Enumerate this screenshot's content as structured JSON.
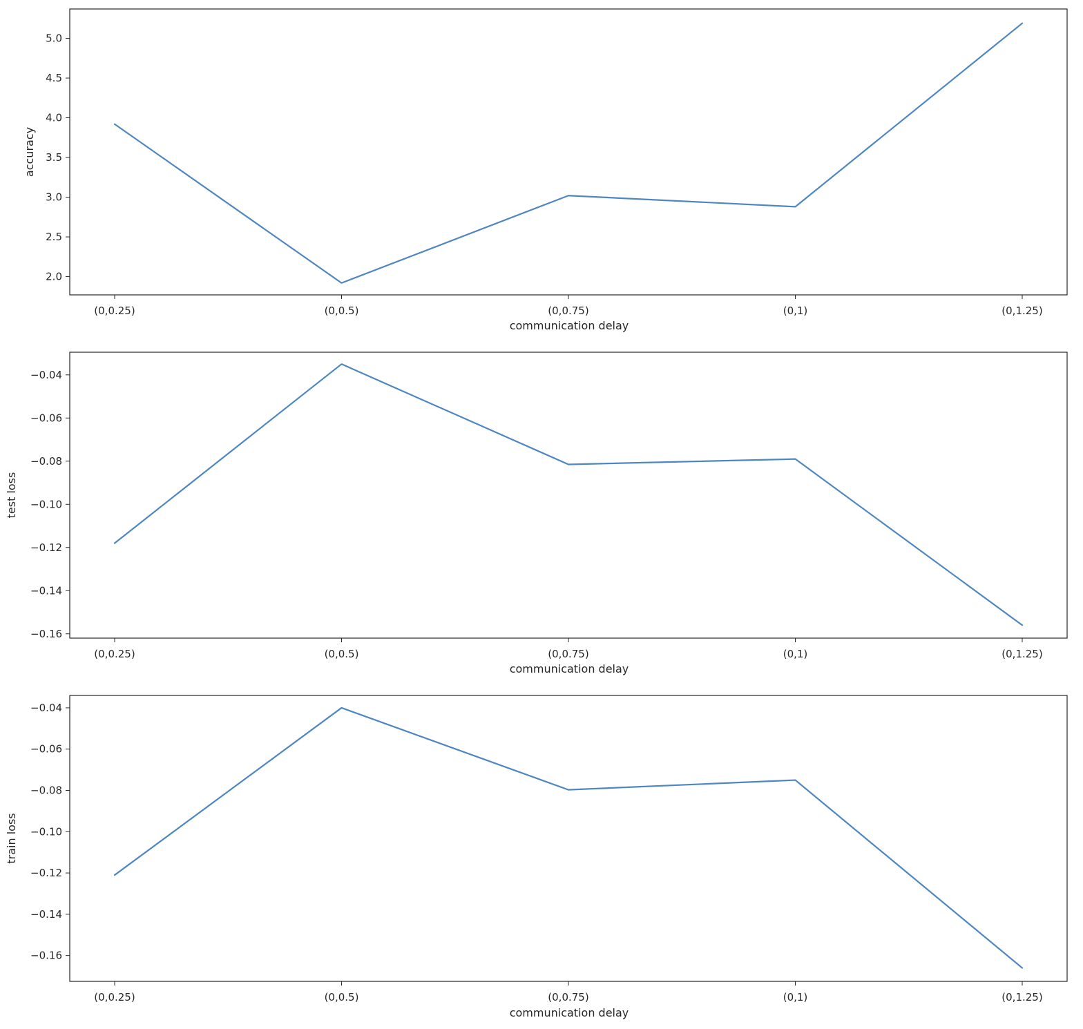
{
  "chart_data": [
    {
      "type": "line",
      "categories": [
        "(0,0.25)",
        "(0,0.5)",
        "(0,0.75)",
        "(0,1)",
        "(0,1.25)"
      ],
      "series": [
        {
          "values": [
            3.92,
            1.92,
            3.02,
            2.88,
            5.19
          ]
        }
      ],
      "xlabel": "communication delay",
      "ylabel": "accuracy",
      "ylim": [
        1.77,
        5.37
      ],
      "yticks": [
        2.0,
        2.5,
        3.0,
        3.5,
        4.0,
        4.5,
        5.0
      ],
      "ytick_labels": [
        "2.0",
        "2.5",
        "3.0",
        "3.5",
        "4.0",
        "4.5",
        "5.0"
      ],
      "grid": false,
      "color": "#4e86c1"
    },
    {
      "type": "line",
      "categories": [
        "(0,0.25)",
        "(0,0.5)",
        "(0,0.75)",
        "(0,1)",
        "(0,1.25)"
      ],
      "series": [
        {
          "values": [
            -0.118,
            -0.035,
            -0.0815,
            -0.079,
            -0.156
          ]
        }
      ],
      "xlabel": "communication delay",
      "ylabel": "test loss",
      "ylim": [
        -0.162,
        -0.0295
      ],
      "yticks": [
        -0.16,
        -0.14,
        -0.12,
        -0.1,
        -0.08,
        -0.06,
        -0.04
      ],
      "ytick_labels": [
        "−0.16",
        "−0.14",
        "−0.12",
        "−0.10",
        "−0.08",
        "−0.06",
        "−0.04"
      ],
      "grid": false,
      "color": "#4e86c1"
    },
    {
      "type": "line",
      "categories": [
        "(0,0.25)",
        "(0,0.5)",
        "(0,0.75)",
        "(0,1)",
        "(0,1.25)"
      ],
      "series": [
        {
          "values": [
            -0.121,
            -0.04,
            -0.0797,
            -0.075,
            -0.166
          ]
        }
      ],
      "xlabel": "communication delay",
      "ylabel": "train loss",
      "ylim": [
        -0.1725,
        -0.034
      ],
      "yticks": [
        -0.16,
        -0.14,
        -0.12,
        -0.1,
        -0.08,
        -0.06,
        -0.04
      ],
      "ytick_labels": [
        "−0.16",
        "−0.14",
        "−0.12",
        "−0.10",
        "−0.08",
        "−0.06",
        "−0.04"
      ],
      "grid": false,
      "color": "#4e86c1"
    }
  ]
}
